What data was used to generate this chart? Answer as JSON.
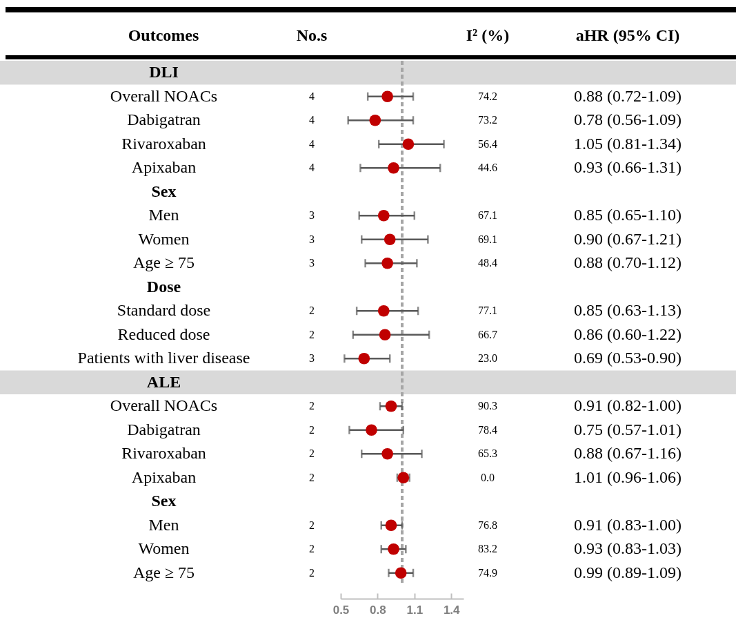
{
  "chart_data": {
    "type": "scatter",
    "orientation": "horizontal",
    "categories": [
      "DLI",
      "Overall NOACs",
      "Dabigatran",
      "Rivaroxaban",
      "Apixaban",
      "Sex",
      "Men",
      "Women",
      "Age ≥ 75",
      "Dose",
      "Standard dose",
      "Reduced dose",
      "Patients with liver disease",
      "ALE",
      "Overall NOACs",
      "Dabigatran",
      "Rivaroxaban",
      "Apixaban",
      "Sex",
      "Men",
      "Women",
      "Age ≥ 75"
    ],
    "values": [
      null,
      0.88,
      0.78,
      1.05,
      0.93,
      null,
      0.85,
      0.9,
      0.88,
      null,
      0.85,
      0.86,
      0.69,
      null,
      0.91,
      0.75,
      0.88,
      1.01,
      null,
      0.91,
      0.93,
      0.99
    ],
    "errors": [
      null,
      [
        0.72,
        1.09
      ],
      [
        0.56,
        1.09
      ],
      [
        0.81,
        1.34
      ],
      [
        0.66,
        1.31
      ],
      null,
      [
        0.65,
        1.1
      ],
      [
        0.67,
        1.21
      ],
      [
        0.7,
        1.12
      ],
      null,
      [
        0.63,
        1.13
      ],
      [
        0.6,
        1.22
      ],
      [
        0.53,
        0.9
      ],
      null,
      [
        0.82,
        1.0
      ],
      [
        0.57,
        1.01
      ],
      [
        0.67,
        1.16
      ],
      [
        0.96,
        1.06
      ],
      null,
      [
        0.83,
        1.0
      ],
      [
        0.83,
        1.03
      ],
      [
        0.89,
        1.09
      ]
    ],
    "value_labels": [
      null,
      "0.88 (0.72-1.09)",
      "0.78 (0.56-1.09)",
      "1.05 (0.81-1.34)",
      "0.93 (0.66-1.31)",
      null,
      "0.85 (0.65-1.10)",
      "0.90 (0.67-1.21)",
      "0.88 (0.70-1.12)",
      null,
      "0.85 (0.63-1.13)",
      "0.86 (0.60-1.22)",
      "0.69 (0.53-0.90)",
      null,
      "0.91 (0.82-1.00)",
      "0.75 (0.57-1.01)",
      "0.88 (0.67-1.16)",
      "1.01 (0.96-1.06)",
      null,
      "0.91 (0.83-1.00)",
      "0.93 (0.83-1.03)",
      "0.99 (0.89-1.09)"
    ],
    "color": "#c00000",
    "marker": "circle",
    "grid": false,
    "xlim": [
      0.5,
      1.5
    ],
    "xticks": [
      0.5,
      0.8,
      1.1,
      1.4
    ],
    "ref_lines": [
      {
        "axis": "x",
        "value": 1,
        "color": "#a6a6a6",
        "line_style": "dashed"
      }
    ],
    "bands": [
      {
        "axis": "y",
        "from": "DLI",
        "to": "DLI",
        "color": "#d9d9d9"
      },
      {
        "axis": "y",
        "from": "ALE",
        "to": "ALE",
        "color": "#d9d9d9"
      }
    ],
    "annotations": [
      "Outcomes",
      "No.s",
      "I² (%)",
      "aHR (95% CI)",
      "4",
      "4",
      "4",
      "4",
      "3",
      "3",
      "3",
      "2",
      "2",
      "3",
      "2",
      "2",
      "2",
      "2",
      "2",
      "2",
      "2",
      "74.2",
      "73.2",
      "56.4",
      "44.6",
      "67.1",
      "69.1",
      "48.4",
      "77.1",
      "66.7",
      "23.0",
      "90.3",
      "78.4",
      "65.3",
      "0.0",
      "76.8",
      "83.2",
      "74.9"
    ]
  }
}
